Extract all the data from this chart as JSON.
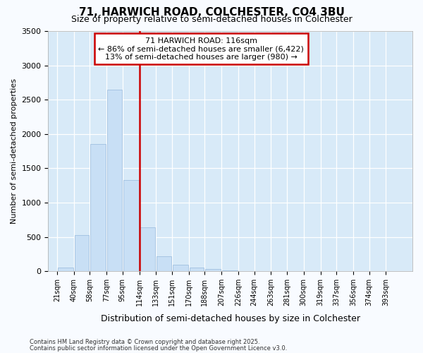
{
  "title1": "71, HARWICH ROAD, COLCHESTER, CO4 3BU",
  "title2": "Size of property relative to semi-detached houses in Colchester",
  "xlabel": "Distribution of semi-detached houses by size in Colchester",
  "ylabel": "Number of semi-detached properties",
  "footnote1": "Contains HM Land Registry data © Crown copyright and database right 2025.",
  "footnote2": "Contains public sector information licensed under the Open Government Licence v3.0.",
  "annotation_title": "71 HARWICH ROAD: 116sqm",
  "annotation_line1": "← 86% of semi-detached houses are smaller (6,422)",
  "annotation_line2": "13% of semi-detached houses are larger (980) →",
  "property_size_bin": 5,
  "bins_left": [
    21,
    40,
    58,
    77,
    95,
    114,
    133,
    151,
    170,
    188,
    207,
    226,
    244,
    263,
    281,
    300,
    319,
    337,
    356,
    374,
    393
  ],
  "counts": [
    55,
    530,
    1850,
    2650,
    1330,
    640,
    215,
    100,
    50,
    30,
    10,
    5,
    3,
    2,
    0,
    0,
    0,
    0,
    0,
    0,
    0
  ],
  "bar_color": "#c8dff5",
  "bar_edge_color": "#a0c0e0",
  "vline_color": "#cc0000",
  "annotation_edge_color": "#cc0000",
  "ylim": [
    0,
    3500
  ],
  "yticks": [
    0,
    500,
    1000,
    1500,
    2000,
    2500,
    3000,
    3500
  ],
  "plot_bg_color": "#d8eaf8",
  "fig_bg_color": "#f8fbff",
  "grid_color": "#ffffff",
  "title1_fontsize": 11,
  "title2_fontsize": 9,
  "ylabel_fontsize": 8,
  "xlabel_fontsize": 9,
  "tick_fontsize": 7,
  "footnote_fontsize": 6
}
